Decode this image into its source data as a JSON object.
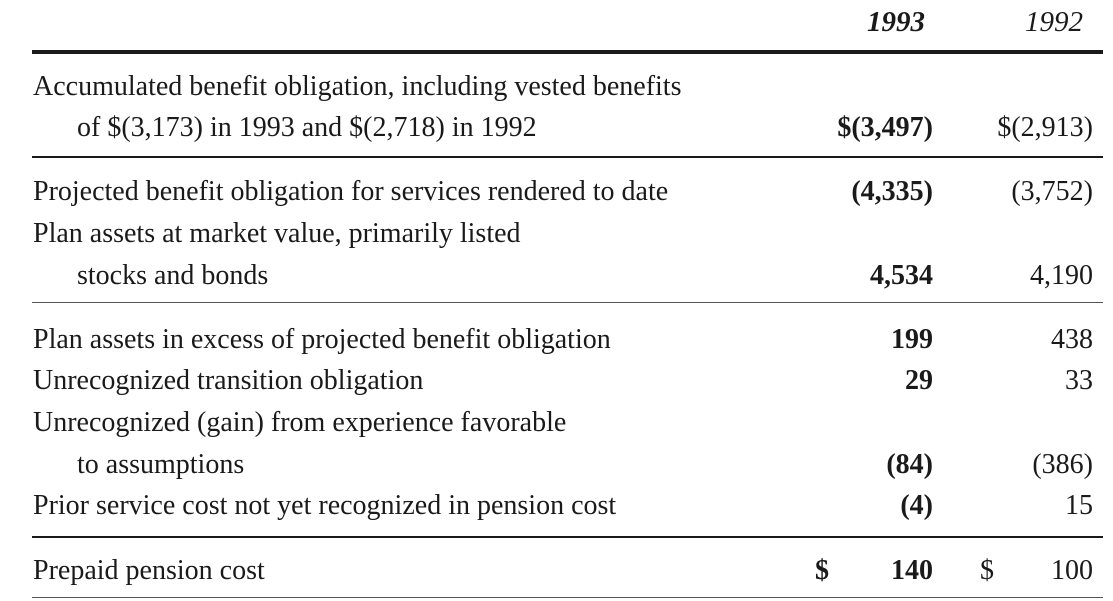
{
  "header": {
    "col_1993": "1993",
    "col_1992": "1992"
  },
  "rows": [
    {
      "label_line1": "Accumulated benefit obligation, including vested benefits",
      "label_line2": "of $(3,173) in 1993 and $(2,718) in 1992",
      "v1993": "$(3,497)",
      "v1992": "$(2,913)"
    },
    {
      "label": "Projected benefit obligation for services rendered to date",
      "v1993": "(4,335)",
      "v1992": "(3,752)"
    },
    {
      "label_line1": "Plan assets at market value, primarily listed",
      "label_line2": "stocks and bonds",
      "v1993": "4,534",
      "v1992": "4,190"
    },
    {
      "label": "Plan assets in excess of projected benefit obligation",
      "v1993": "199",
      "v1992": "438"
    },
    {
      "label": "Unrecognized transition obligation",
      "v1993": "29",
      "v1992": "33"
    },
    {
      "label_line1": "Unrecognized (gain) from experience favorable",
      "label_line2": "to assumptions",
      "v1993": "(84)",
      "v1992": "(386)"
    },
    {
      "label": "Prior service cost not yet recognized in pension cost",
      "v1993": "(4)",
      "v1992": "15"
    },
    {
      "label": "Prepaid pension cost",
      "dollar1993": "$",
      "v1993": "140",
      "dollar1992": "$",
      "v1992": "100"
    }
  ]
}
